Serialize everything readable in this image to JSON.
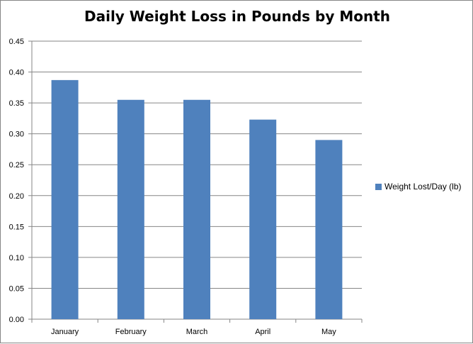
{
  "chart_data": {
    "type": "bar",
    "title": "Daily Weight Loss in Pounds by Month",
    "xlabel": "",
    "ylabel": "",
    "categories": [
      "January",
      "February",
      "March",
      "April",
      "May"
    ],
    "series": [
      {
        "name": "Weight Lost/Day (lb)",
        "values": [
          0.387,
          0.355,
          0.355,
          0.323,
          0.29
        ]
      }
    ],
    "yticks": [
      "0.00",
      "0.05",
      "0.10",
      "0.15",
      "0.20",
      "0.25",
      "0.30",
      "0.35",
      "0.40",
      "0.45"
    ],
    "ylim": [
      0,
      0.45
    ],
    "grid": true,
    "legend_position": "right",
    "colors": {
      "bar": "#4f81bd",
      "grid": "#868686"
    }
  }
}
